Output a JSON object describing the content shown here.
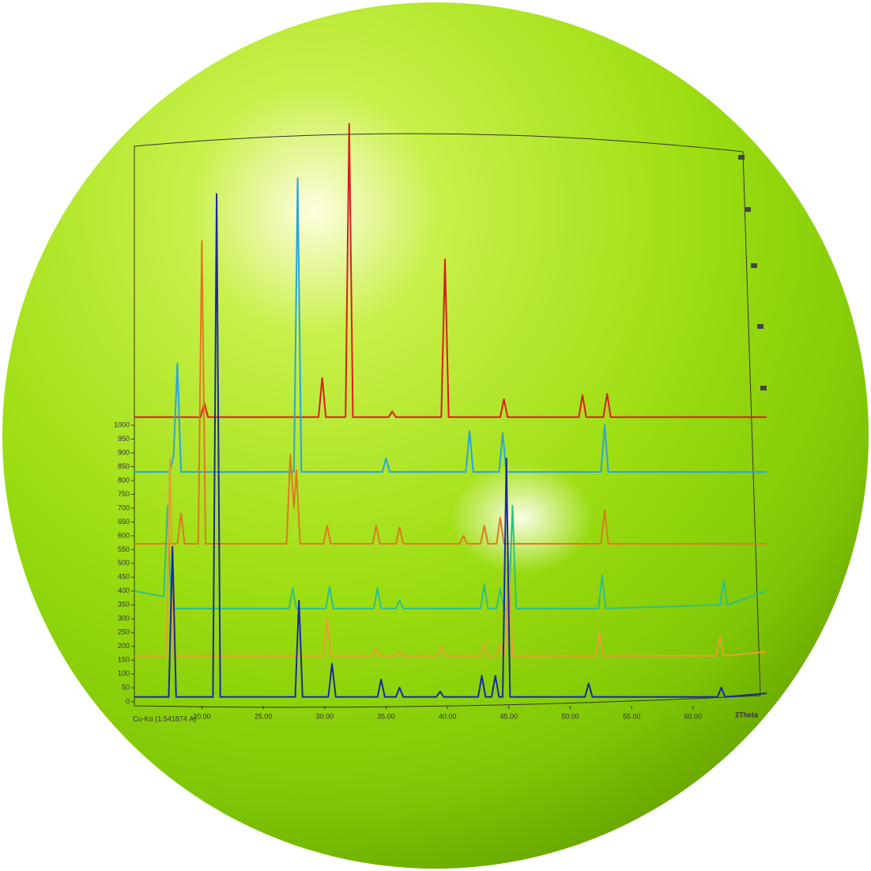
{
  "chart_data": {
    "type": "line",
    "x_label": "2Theta",
    "radiation_label": "Cu-Kα (1.541874 A)",
    "xlim": [
      14.5,
      66
    ],
    "ylim": [
      -15,
      2095
    ],
    "xticks": [
      {
        "value": 20,
        "label": "20.00"
      },
      {
        "value": 25,
        "label": "25.00"
      },
      {
        "value": 30,
        "label": "30.00"
      },
      {
        "value": 35,
        "label": "35.00"
      },
      {
        "value": 40,
        "label": "40.00"
      },
      {
        "value": 45,
        "label": "45.00"
      },
      {
        "value": 50,
        "label": "50.00"
      },
      {
        "value": 55,
        "label": "55.00"
      },
      {
        "value": 60,
        "label": "60.00"
      }
    ],
    "yticks": [
      0,
      50,
      100,
      150,
      200,
      250,
      300,
      350,
      400,
      450,
      500,
      550,
      600,
      650,
      700,
      750,
      800,
      850,
      900,
      950,
      1000
    ],
    "series": [
      {
        "color": "#d81e1e",
        "x": [
          14.5,
          19.9,
          20.2,
          20.5,
          29.5,
          29.8,
          30.1,
          31.7,
          32.0,
          32.3,
          35.2,
          35.5,
          35.8,
          39.5,
          39.8,
          40.1,
          44.3,
          44.6,
          44.9,
          50.7,
          51.0,
          51.3,
          52.7,
          53.0,
          53.3,
          66
        ],
        "values": [
          1029,
          1029,
          1080,
          1029,
          1029,
          1171,
          1029,
          1029,
          2090,
          1029,
          1029,
          1050,
          1029,
          1029,
          1600,
          1029,
          1029,
          1094,
          1029,
          1029,
          1109,
          1029,
          1029,
          1114,
          1029,
          1029
        ]
      },
      {
        "color": "#2aa6d8",
        "x": [
          14.5,
          17.4,
          17.7,
          18.0,
          18.3,
          27.5,
          27.8,
          28.1,
          34.7,
          35.0,
          35.3,
          41.5,
          41.8,
          42.1,
          44.2,
          44.5,
          44.8,
          52.5,
          52.8,
          53.1,
          66
        ],
        "values": [
          831,
          831,
          894,
          1223,
          831,
          831,
          1894,
          831,
          831,
          880,
          831,
          831,
          980,
          831,
          831,
          971,
          831,
          831,
          1000,
          831,
          831
        ]
      },
      {
        "color": "#de7a22",
        "x": [
          14.5,
          18.0,
          18.3,
          18.6,
          19.7,
          20.0,
          20.3,
          26.9,
          27.2,
          27.5,
          27.7,
          28.0,
          29.9,
          30.2,
          30.5,
          33.9,
          34.2,
          34.5,
          35.8,
          36.1,
          36.4,
          41.0,
          41.3,
          41.6,
          42.7,
          43.0,
          43.3,
          44.0,
          44.3,
          44.6,
          52.5,
          52.8,
          53.1,
          66
        ],
        "values": [
          571,
          571,
          680,
          571,
          571,
          1666,
          571,
          571,
          894,
          700,
          837,
          571,
          571,
          637,
          571,
          571,
          637,
          571,
          571,
          630,
          571,
          571,
          600,
          571,
          571,
          637,
          571,
          571,
          666,
          571,
          571,
          694,
          571,
          571
        ]
      },
      {
        "color": "#2fbf86",
        "x": [
          14.5,
          16.9,
          17.2,
          17.5,
          27.1,
          27.4,
          27.7,
          30.1,
          30.4,
          30.7,
          34.0,
          34.3,
          34.6,
          35.8,
          36.1,
          36.4,
          42.7,
          43.0,
          43.3,
          44.0,
          44.3,
          44.6,
          45.0,
          45.3,
          45.6,
          52.3,
          52.6,
          52.9,
          62.2,
          62.5,
          62.8,
          66
        ],
        "values": [
          400,
          380,
          709,
          337,
          337,
          409,
          337,
          337,
          417,
          337,
          337,
          409,
          337,
          337,
          366,
          337,
          337,
          423,
          337,
          337,
          409,
          337,
          337,
          709,
          337,
          337,
          457,
          337,
          350,
          437,
          350,
          400
        ]
      },
      {
        "color": "#e8a030",
        "x": [
          14.5,
          17.1,
          17.4,
          17.7,
          29.9,
          30.2,
          30.5,
          33.9,
          34.2,
          34.5,
          35.8,
          36.1,
          36.4,
          39.2,
          39.5,
          39.8,
          42.7,
          43.0,
          43.3,
          44.0,
          44.3,
          44.6,
          44.7,
          45.0,
          45.3,
          52.1,
          52.4,
          52.7,
          61.9,
          62.2,
          62.5,
          66
        ],
        "values": [
          166,
          166,
          880,
          166,
          166,
          303,
          166,
          166,
          194,
          166,
          166,
          180,
          166,
          166,
          200,
          166,
          166,
          209,
          166,
          166,
          209,
          166,
          166,
          500,
          166,
          166,
          251,
          166,
          166,
          237,
          166,
          180
        ]
      },
      {
        "color": "#1a2a9c",
        "x": [
          14.5,
          17.3,
          17.6,
          17.9,
          20.9,
          21.2,
          21.5,
          27.6,
          27.9,
          28.2,
          30.3,
          30.6,
          30.9,
          34.3,
          34.6,
          34.9,
          35.8,
          36.1,
          36.4,
          39.1,
          39.4,
          39.7,
          42.5,
          42.8,
          43.1,
          43.6,
          43.9,
          44.2,
          44.5,
          44.8,
          45.1,
          51.2,
          51.5,
          51.8,
          62.0,
          62.3,
          62.6,
          66
        ],
        "values": [
          17,
          17,
          560,
          17,
          17,
          1837,
          17,
          17,
          366,
          17,
          17,
          137,
          17,
          17,
          80,
          17,
          17,
          51,
          17,
          17,
          37,
          17,
          17,
          94,
          17,
          17,
          94,
          17,
          17,
          880,
          17,
          17,
          66,
          17,
          17,
          51,
          17,
          30
        ]
      }
    ]
  }
}
